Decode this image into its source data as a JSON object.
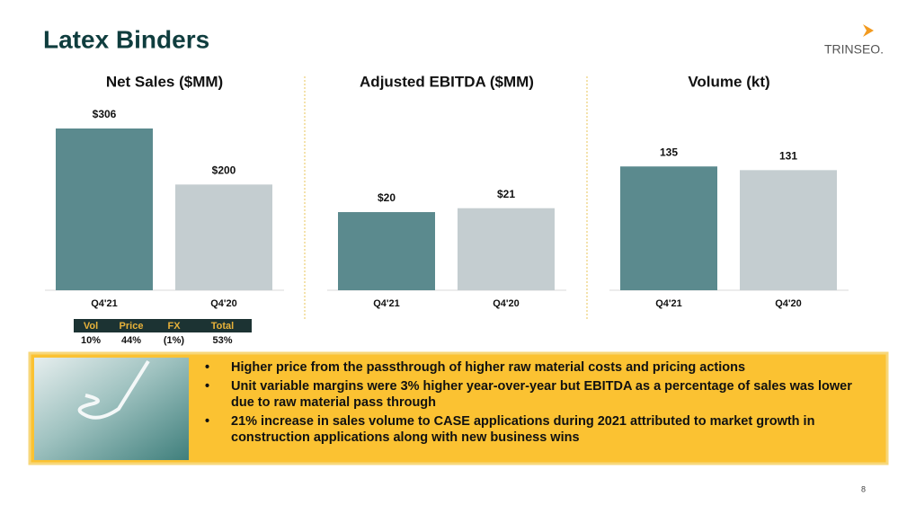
{
  "title": "Latex Binders",
  "logo": "TRINSEO.",
  "chart_data": [
    {
      "type": "bar",
      "title": "Net Sales ($MM)",
      "categories": [
        "Q4'21",
        "Q4'20"
      ],
      "values": [
        306,
        200
      ],
      "value_labels": [
        "$306",
        "$200"
      ],
      "colors": [
        "#5b8a8e",
        "#c4cdd0"
      ],
      "ylim": [
        0,
        340
      ]
    },
    {
      "type": "bar",
      "title": "Adjusted EBITDA ($MM)",
      "categories": [
        "Q4'21",
        "Q4'20"
      ],
      "values": [
        20,
        21
      ],
      "value_labels": [
        "$20",
        "$21"
      ],
      "colors": [
        "#5b8a8e",
        "#c4cdd0"
      ],
      "ylim": [
        0,
        46
      ]
    },
    {
      "type": "bar",
      "title": "Volume (kt)",
      "categories": [
        "Q4'21",
        "Q4'20"
      ],
      "values": [
        135,
        131
      ],
      "colors": [
        "#5b8a8e",
        "#c4cdd0"
      ],
      "ylim": [
        0,
        196
      ]
    }
  ],
  "table": {
    "header": [
      "Vol",
      "Price",
      "FX",
      "Total"
    ],
    "rows": [
      [
        "10%",
        "44%",
        "(1%)",
        "53%"
      ]
    ]
  },
  "bullets": [
    "Higher price from the passthrough of higher raw material costs and pricing actions",
    "Unit variable margins were 3% higher year-over-year but EBITDA as a percentage of sales was lower due to raw material pass through",
    "21% increase in sales volume to CASE applications during 2021 attributed to market growth in construction applications along with new business wins"
  ],
  "page_number": "8"
}
